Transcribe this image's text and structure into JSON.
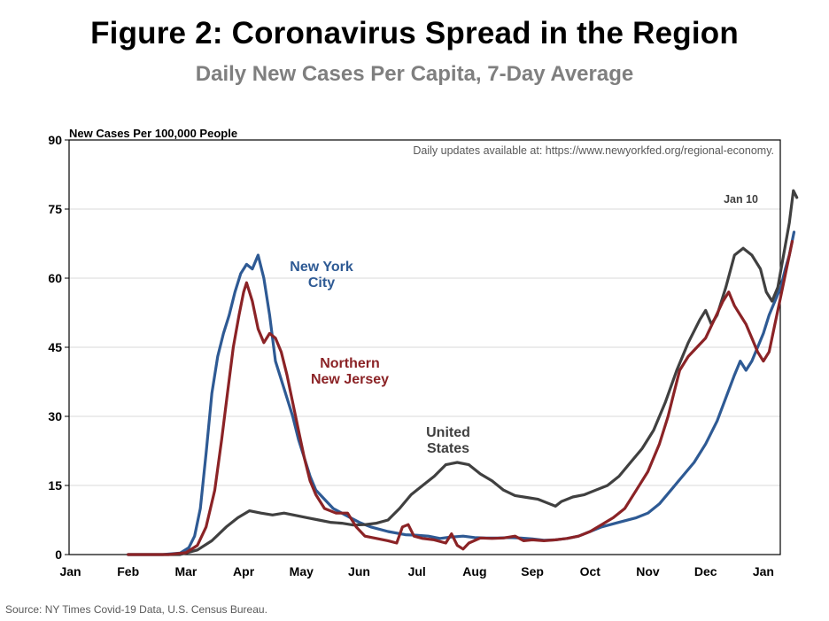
{
  "chart_data": {
    "type": "line",
    "title": "Figure 2: Coronavirus Spread in the Region",
    "subtitle": "Daily New Cases Per Capita, 7-Day Average",
    "ylabel": "New Cases Per 100,000 People",
    "xlabel": "",
    "ylim": [
      0,
      90
    ],
    "yticks": [
      "0",
      "15",
      "30",
      "45",
      "60",
      "75",
      "90"
    ],
    "xticks": [
      "Jan",
      "Feb",
      "Mar",
      "Apr",
      "May",
      "Jun",
      "Jul",
      "Aug",
      "Sep",
      "Oct",
      "Nov",
      "Dec",
      "Jan"
    ],
    "grid": "horizontal",
    "note": "Daily updates available at: https://www.newyorkfed.org/regional-economy.",
    "end_label": "Jan 10",
    "source": "Source: NY Times Covid-19 Data, U.S. Census Bureau.",
    "series": [
      {
        "name": "New York City",
        "label_lines": [
          "New York",
          "City"
        ],
        "color": "#2e5a94",
        "points": [
          [
            1,
            0
          ],
          [
            1.6,
            0
          ],
          [
            1.9,
            0.3
          ],
          [
            2.05,
            1.5
          ],
          [
            2.15,
            4
          ],
          [
            2.25,
            10
          ],
          [
            2.35,
            22
          ],
          [
            2.45,
            35
          ],
          [
            2.55,
            43
          ],
          [
            2.65,
            48
          ],
          [
            2.75,
            52
          ],
          [
            2.85,
            57
          ],
          [
            2.95,
            61
          ],
          [
            3.05,
            63
          ],
          [
            3.15,
            62
          ],
          [
            3.25,
            65
          ],
          [
            3.35,
            60
          ],
          [
            3.45,
            52
          ],
          [
            3.55,
            42
          ],
          [
            3.65,
            38
          ],
          [
            3.75,
            34
          ],
          [
            3.85,
            30
          ],
          [
            3.95,
            25
          ],
          [
            4.05,
            21
          ],
          [
            4.15,
            17
          ],
          [
            4.25,
            14
          ],
          [
            4.4,
            12
          ],
          [
            4.55,
            10
          ],
          [
            4.7,
            9
          ],
          [
            4.85,
            8
          ],
          [
            5.0,
            7
          ],
          [
            5.2,
            6
          ],
          [
            5.5,
            5
          ],
          [
            5.8,
            4.3
          ],
          [
            6.0,
            4.2
          ],
          [
            6.2,
            4
          ],
          [
            6.4,
            3.5
          ],
          [
            6.6,
            3.8
          ],
          [
            6.8,
            4
          ],
          [
            7.0,
            3.7
          ],
          [
            7.2,
            3.6
          ],
          [
            7.4,
            3.6
          ],
          [
            7.6,
            3.7
          ],
          [
            7.8,
            3.6
          ],
          [
            8.0,
            3.4
          ],
          [
            8.2,
            3.1
          ],
          [
            8.4,
            3.2
          ],
          [
            8.6,
            3.5
          ],
          [
            8.8,
            4
          ],
          [
            9.0,
            5
          ],
          [
            9.2,
            6
          ],
          [
            9.5,
            7
          ],
          [
            9.8,
            8
          ],
          [
            10.0,
            9
          ],
          [
            10.2,
            11
          ],
          [
            10.4,
            14
          ],
          [
            10.6,
            17
          ],
          [
            10.8,
            20
          ],
          [
            11.0,
            24
          ],
          [
            11.2,
            29
          ],
          [
            11.35,
            34
          ],
          [
            11.5,
            39
          ],
          [
            11.6,
            42
          ],
          [
            11.7,
            40
          ],
          [
            11.8,
            42
          ],
          [
            11.9,
            45
          ],
          [
            12.0,
            48
          ],
          [
            12.1,
            52
          ],
          [
            12.2,
            55
          ],
          [
            12.3,
            58
          ],
          [
            12.38,
            62
          ],
          [
            12.45,
            65
          ],
          [
            12.53,
            70
          ]
        ]
      },
      {
        "name": "Northern New Jersey",
        "label_lines": [
          "Northern",
          "New Jersey"
        ],
        "color": "#8b2326",
        "points": [
          [
            1,
            0
          ],
          [
            1.7,
            0
          ],
          [
            2.0,
            0.4
          ],
          [
            2.2,
            2
          ],
          [
            2.35,
            6
          ],
          [
            2.5,
            14
          ],
          [
            2.62,
            25
          ],
          [
            2.72,
            35
          ],
          [
            2.82,
            45
          ],
          [
            2.92,
            52
          ],
          [
            3.0,
            57
          ],
          [
            3.05,
            59
          ],
          [
            3.15,
            55
          ],
          [
            3.25,
            49
          ],
          [
            3.35,
            46
          ],
          [
            3.45,
            48
          ],
          [
            3.55,
            47
          ],
          [
            3.65,
            44
          ],
          [
            3.75,
            39
          ],
          [
            3.85,
            33
          ],
          [
            3.95,
            27
          ],
          [
            4.05,
            21
          ],
          [
            4.15,
            16
          ],
          [
            4.25,
            13
          ],
          [
            4.4,
            10
          ],
          [
            4.6,
            9
          ],
          [
            4.8,
            9
          ],
          [
            4.95,
            6
          ],
          [
            5.1,
            4
          ],
          [
            5.3,
            3.5
          ],
          [
            5.5,
            3
          ],
          [
            5.65,
            2.5
          ],
          [
            5.75,
            6
          ],
          [
            5.85,
            6.5
          ],
          [
            5.95,
            4
          ],
          [
            6.1,
            3.5
          ],
          [
            6.3,
            3.2
          ],
          [
            6.5,
            2.5
          ],
          [
            6.6,
            4.5
          ],
          [
            6.7,
            2
          ],
          [
            6.8,
            1.2
          ],
          [
            6.9,
            2.5
          ],
          [
            7.1,
            3.6
          ],
          [
            7.3,
            3.5
          ],
          [
            7.5,
            3.6
          ],
          [
            7.7,
            4
          ],
          [
            7.85,
            3
          ],
          [
            8.0,
            3.2
          ],
          [
            8.2,
            3
          ],
          [
            8.4,
            3.2
          ],
          [
            8.6,
            3.5
          ],
          [
            8.8,
            4
          ],
          [
            9.0,
            5
          ],
          [
            9.2,
            6.5
          ],
          [
            9.4,
            8
          ],
          [
            9.6,
            10
          ],
          [
            9.8,
            14
          ],
          [
            10.0,
            18
          ],
          [
            10.2,
            24
          ],
          [
            10.35,
            30
          ],
          [
            10.45,
            35
          ],
          [
            10.55,
            40
          ],
          [
            10.7,
            43
          ],
          [
            10.85,
            45
          ],
          [
            11.0,
            47
          ],
          [
            11.15,
            51
          ],
          [
            11.3,
            55
          ],
          [
            11.4,
            57
          ],
          [
            11.5,
            54
          ],
          [
            11.6,
            52
          ],
          [
            11.7,
            50
          ],
          [
            11.8,
            47
          ],
          [
            11.9,
            44
          ],
          [
            12.0,
            42
          ],
          [
            12.1,
            44
          ],
          [
            12.2,
            50
          ],
          [
            12.3,
            56
          ],
          [
            12.4,
            62
          ],
          [
            12.5,
            68
          ]
        ]
      },
      {
        "name": "United States",
        "label_lines": [
          "United",
          "States"
        ],
        "color": "#404040",
        "points": [
          [
            1,
            0
          ],
          [
            1.9,
            0
          ],
          [
            2.2,
            1
          ],
          [
            2.45,
            3
          ],
          [
            2.7,
            6
          ],
          [
            2.9,
            8
          ],
          [
            3.1,
            9.5
          ],
          [
            3.3,
            9
          ],
          [
            3.5,
            8.6
          ],
          [
            3.7,
            9
          ],
          [
            3.9,
            8.5
          ],
          [
            4.1,
            8
          ],
          [
            4.3,
            7.5
          ],
          [
            4.5,
            7
          ],
          [
            4.7,
            6.8
          ],
          [
            4.9,
            6.4
          ],
          [
            5.1,
            6.5
          ],
          [
            5.3,
            6.8
          ],
          [
            5.5,
            7.5
          ],
          [
            5.7,
            10
          ],
          [
            5.9,
            13
          ],
          [
            6.1,
            15
          ],
          [
            6.3,
            17
          ],
          [
            6.5,
            19.5
          ],
          [
            6.7,
            20
          ],
          [
            6.9,
            19.5
          ],
          [
            7.1,
            17.5
          ],
          [
            7.3,
            16
          ],
          [
            7.5,
            14
          ],
          [
            7.7,
            12.8
          ],
          [
            7.9,
            12.4
          ],
          [
            8.1,
            12
          ],
          [
            8.3,
            11
          ],
          [
            8.4,
            10.5
          ],
          [
            8.5,
            11.5
          ],
          [
            8.7,
            12.5
          ],
          [
            8.9,
            13
          ],
          [
            9.1,
            14
          ],
          [
            9.3,
            15
          ],
          [
            9.5,
            17
          ],
          [
            9.7,
            20
          ],
          [
            9.9,
            23
          ],
          [
            10.1,
            27
          ],
          [
            10.3,
            33
          ],
          [
            10.5,
            40
          ],
          [
            10.7,
            46
          ],
          [
            10.9,
            51
          ],
          [
            11.0,
            53
          ],
          [
            11.1,
            50
          ],
          [
            11.2,
            52
          ],
          [
            11.35,
            58
          ],
          [
            11.5,
            65
          ],
          [
            11.65,
            66.5
          ],
          [
            11.8,
            65
          ],
          [
            11.95,
            62
          ],
          [
            12.05,
            57
          ],
          [
            12.15,
            55
          ],
          [
            12.25,
            58
          ],
          [
            12.35,
            65
          ],
          [
            12.45,
            72
          ],
          [
            12.52,
            79
          ],
          [
            12.58,
            77.5
          ]
        ]
      }
    ]
  }
}
